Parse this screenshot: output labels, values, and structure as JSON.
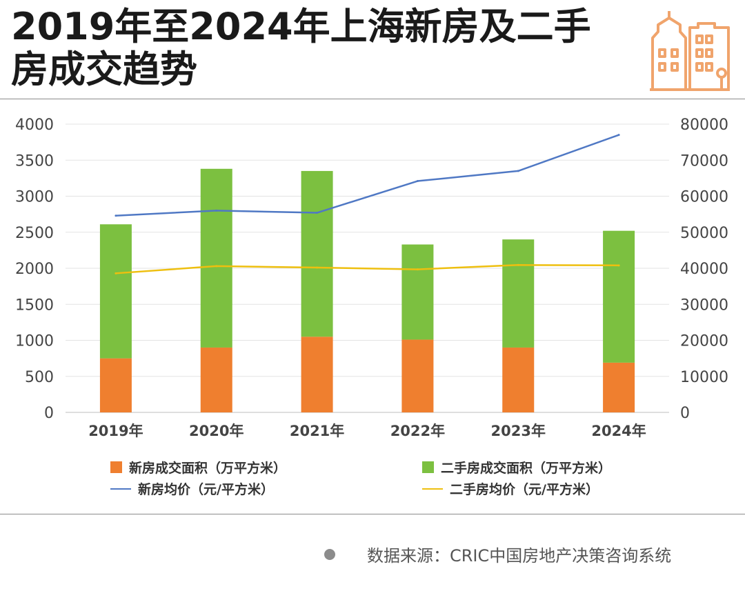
{
  "title": "2019年至2024年上海新房及二手房成交趋势",
  "source": "数据来源：CRIC中国房地产决策咨询系统",
  "logo_icon": "building-icon",
  "colors": {
    "new_area": "#ef7f2f",
    "second_area": "#7cc040",
    "new_price": "#4f78c4",
    "second_price": "#eebf0f",
    "logo": "#f0a46c",
    "axis_text": "#444444",
    "grid": "#e3e3e3"
  },
  "chart_data": {
    "type": "bar",
    "stacked": true,
    "categories": [
      "2019年",
      "2020年",
      "2021年",
      "2022年",
      "2023年",
      "2024年"
    ],
    "y_left": {
      "min": 0,
      "max": 4000,
      "step": 500,
      "ticks": [
        "0",
        "500",
        "1000",
        "1500",
        "2000",
        "2500",
        "3000",
        "3500",
        "4000"
      ]
    },
    "y_right": {
      "min": 0,
      "max": 80000,
      "step": 10000,
      "ticks": [
        "0",
        "10000",
        "20000",
        "30000",
        "40000",
        "50000",
        "60000",
        "70000",
        "80000"
      ]
    },
    "series": [
      {
        "name": "新房成交面积（万平方米）",
        "kind": "bar",
        "axis": "left",
        "values": [
          750,
          900,
          1050,
          1010,
          900,
          690
        ]
      },
      {
        "name": "二手房成交面积（万平方米）",
        "kind": "bar",
        "axis": "left",
        "values": [
          1860,
          2480,
          2300,
          1320,
          1500,
          1830
        ]
      },
      {
        "name": "新房均价（元/平方米）",
        "kind": "line",
        "axis": "right",
        "values": [
          54600,
          56000,
          55400,
          64200,
          67000,
          77000
        ]
      },
      {
        "name": "二手房均价（元/平方米）",
        "kind": "line",
        "axis": "right",
        "values": [
          38600,
          40600,
          40200,
          39700,
          40900,
          40800
        ]
      }
    ]
  }
}
